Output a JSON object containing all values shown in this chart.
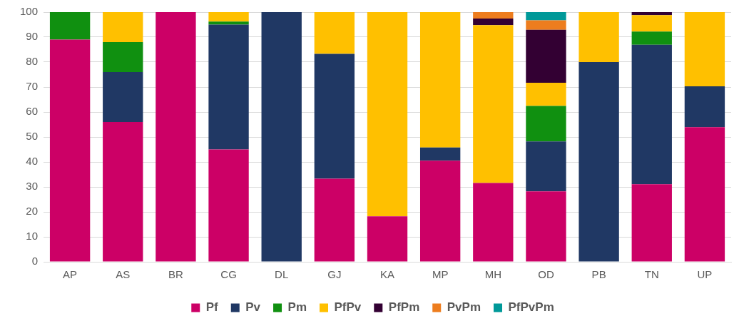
{
  "chart_data": {
    "type": "bar",
    "stacked": true,
    "categories": [
      "AP",
      "AS",
      "BR",
      "CG",
      "DL",
      "GJ",
      "KA",
      "MP",
      "MH",
      "OD",
      "PB",
      "TN",
      "UP"
    ],
    "series": [
      {
        "name": "Pf",
        "color": "#cc0066",
        "values": [
          89,
          56,
          100,
          45,
          0,
          33.3,
          18.2,
          40.5,
          31.6,
          28.2,
          0,
          31.1,
          53.9
        ]
      },
      {
        "name": "Pv",
        "color": "#203864",
        "values": [
          0,
          20,
          0,
          50,
          100,
          50,
          0,
          5.3,
          0,
          20,
          80,
          55.8,
          16.4
        ]
      },
      {
        "name": "Pm",
        "color": "#109010",
        "values": [
          11,
          12,
          0,
          1.2,
          0,
          0,
          0,
          0,
          0,
          14.2,
          0,
          5.3,
          0
        ]
      },
      {
        "name": "PfPv",
        "color": "#ffc000",
        "values": [
          0,
          12,
          0,
          3.8,
          0,
          16.7,
          81.8,
          54.2,
          63.2,
          9.3,
          20,
          6.6,
          29.7
        ]
      },
      {
        "name": "PfPm",
        "color": "#330033",
        "values": [
          0,
          0,
          0,
          0,
          0,
          0,
          0,
          0,
          2.6,
          21.2,
          0,
          1.2,
          0
        ]
      },
      {
        "name": "PvPm",
        "color": "#ed7d1e",
        "values": [
          0,
          0,
          0,
          0,
          0,
          0,
          0,
          0,
          2.6,
          3.8,
          0,
          0,
          0
        ]
      },
      {
        "name": "PfPvPm",
        "color": "#009999",
        "values": [
          0,
          0,
          0,
          0,
          0,
          0,
          0,
          0,
          0,
          3.3,
          0,
          0,
          0
        ]
      }
    ],
    "ylim": [
      0,
      100
    ],
    "yticks": [
      0,
      10,
      20,
      30,
      40,
      50,
      60,
      70,
      80,
      90,
      100
    ],
    "grid": "y",
    "legend": "bottom"
  }
}
